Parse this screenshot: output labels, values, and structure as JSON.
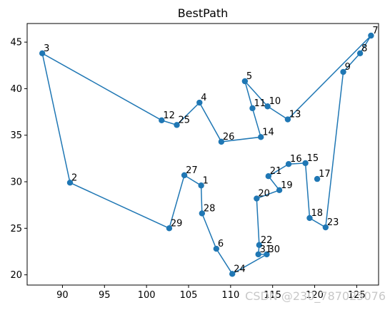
{
  "chart_data": {
    "type": "scatter",
    "title": "BestPath",
    "xlabel": "",
    "ylabel": "",
    "xlim": [
      85.8,
      127.6
    ],
    "ylim": [
      18.9,
      47.0
    ],
    "xticks": [
      90,
      95,
      100,
      105,
      110,
      115,
      120,
      125
    ],
    "yticks": [
      20,
      25,
      30,
      35,
      40,
      45
    ],
    "grid": false,
    "color": "#1f77b4",
    "path_order": [
      "7",
      "8",
      "9",
      "23",
      "18",
      "15",
      "16",
      "21",
      "19",
      "20",
      "22",
      "31",
      "30",
      "24",
      "6",
      "28",
      "1",
      "27",
      "29",
      "2",
      "3",
      "12",
      "25",
      "4",
      "26",
      "14",
      "11",
      "5",
      "10",
      "13",
      "7"
    ],
    "points": [
      {
        "label": "1",
        "x": 106.5,
        "y": 29.6
      },
      {
        "label": "2",
        "x": 90.9,
        "y": 29.9
      },
      {
        "label": "3",
        "x": 87.6,
        "y": 43.8
      },
      {
        "label": "4",
        "x": 106.3,
        "y": 38.5
      },
      {
        "label": "5",
        "x": 111.7,
        "y": 40.8
      },
      {
        "label": "6",
        "x": 108.3,
        "y": 22.8
      },
      {
        "label": "7",
        "x": 126.7,
        "y": 45.7
      },
      {
        "label": "8",
        "x": 125.4,
        "y": 43.8
      },
      {
        "label": "9",
        "x": 123.4,
        "y": 41.8
      },
      {
        "label": "10",
        "x": 114.4,
        "y": 38.1
      },
      {
        "label": "11",
        "x": 112.6,
        "y": 37.9
      },
      {
        "label": "12",
        "x": 101.8,
        "y": 36.6
      },
      {
        "label": "13",
        "x": 116.8,
        "y": 36.7
      },
      {
        "label": "14",
        "x": 113.6,
        "y": 34.8
      },
      {
        "label": "15",
        "x": 118.9,
        "y": 32.0
      },
      {
        "label": "16",
        "x": 116.9,
        "y": 31.9
      },
      {
        "label": "18",
        "x": 119.4,
        "y": 26.1
      },
      {
        "label": "17",
        "x": 120.3,
        "y": 30.3
      },
      {
        "label": "19",
        "x": 115.8,
        "y": 29.1
      },
      {
        "label": "20",
        "x": 113.1,
        "y": 28.2
      },
      {
        "label": "21",
        "x": 114.5,
        "y": 30.6
      },
      {
        "label": "22",
        "x": 113.4,
        "y": 23.2
      },
      {
        "label": "23",
        "x": 121.3,
        "y": 25.1
      },
      {
        "label": "24",
        "x": 110.2,
        "y": 20.1
      },
      {
        "label": "25",
        "x": 103.6,
        "y": 36.1
      },
      {
        "label": "26",
        "x": 108.9,
        "y": 34.3
      },
      {
        "label": "27",
        "x": 104.5,
        "y": 30.7
      },
      {
        "label": "28",
        "x": 106.6,
        "y": 26.6
      },
      {
        "label": "29",
        "x": 102.7,
        "y": 25.0
      },
      {
        "label": "30",
        "x": 114.3,
        "y": 22.2
      },
      {
        "label": "31",
        "x": 113.3,
        "y": 22.2
      }
    ]
  },
  "watermark": "CSDN @230_787025076"
}
